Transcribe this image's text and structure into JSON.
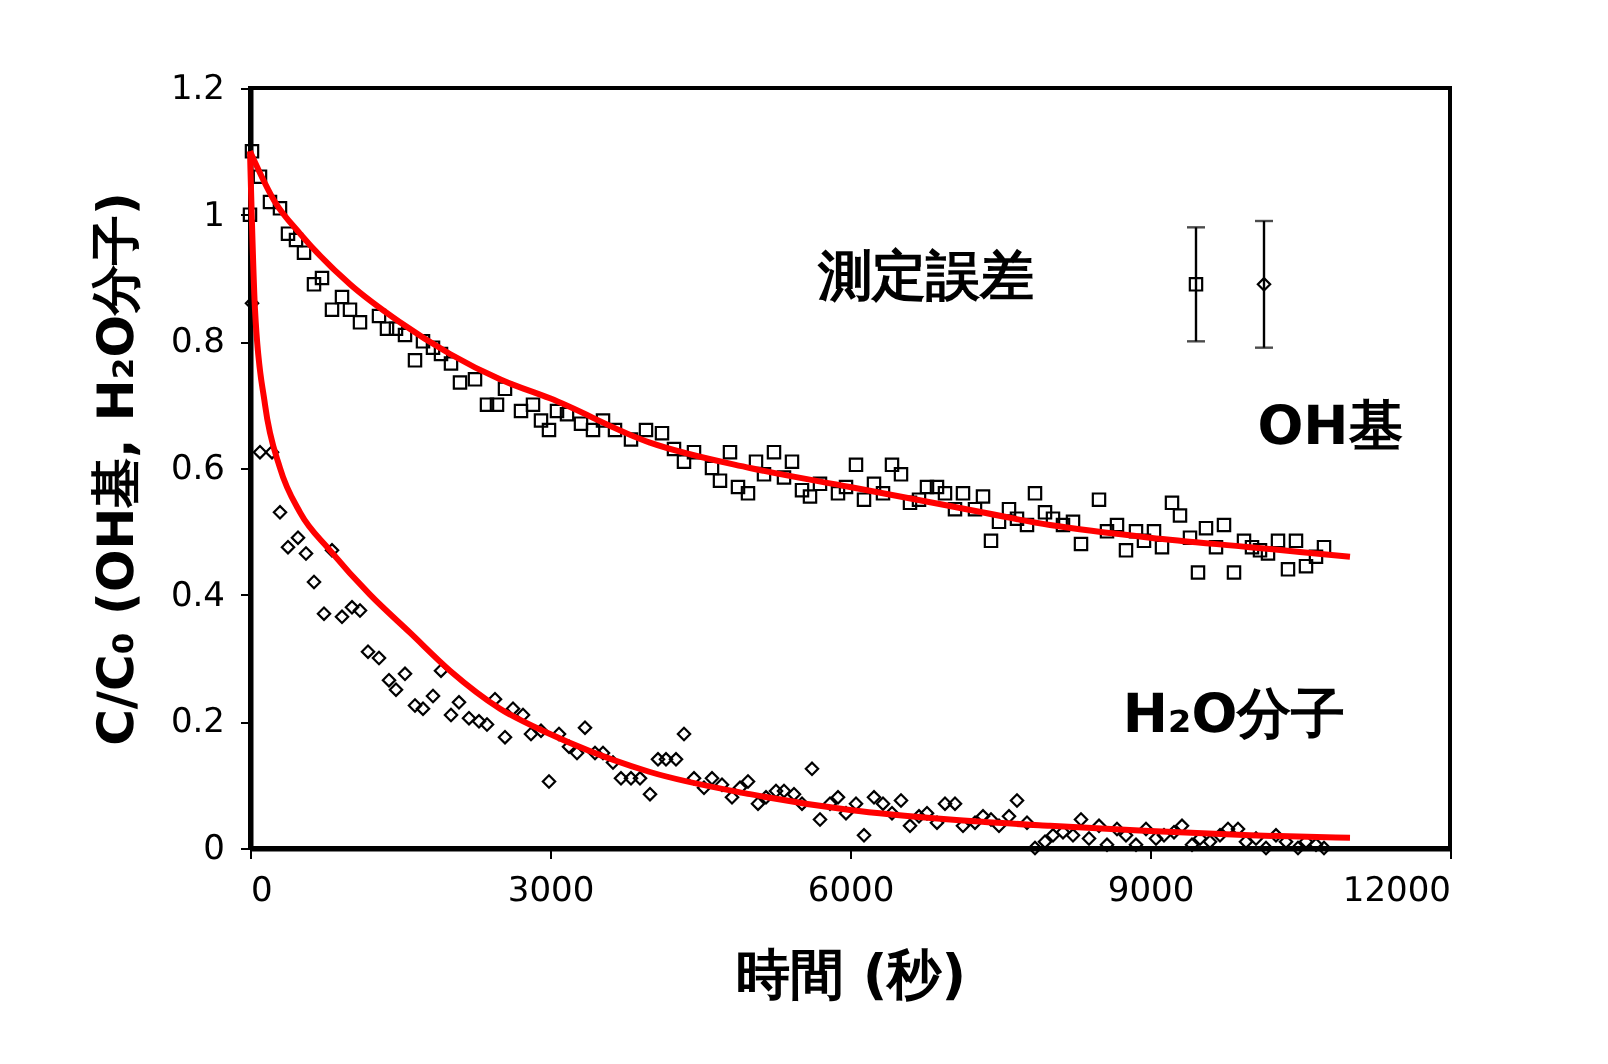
{
  "chart_data": {
    "type": "scatter",
    "xlabel": "時間 (秒)",
    "ylabel": "C/C₀ (OH基, H₂O分子)",
    "xlim": [
      0,
      12000
    ],
    "ylim": [
      0,
      1.2
    ],
    "xticks": [
      0,
      3000,
      6000,
      9000,
      12000
    ],
    "yticks": [
      0,
      0.2,
      0.4,
      0.6,
      0.8,
      1,
      1.2
    ],
    "annotations": [
      "測定誤差"
    ],
    "series": [
      {
        "name": "OH基",
        "type": "scatter",
        "marker": "square",
        "color": "#000000",
        "x": [
          0,
          20,
          100,
          200,
          300,
          380,
          460,
          540,
          640,
          720,
          820,
          920,
          1000,
          1100,
          1290,
          1370,
          1460,
          1550,
          1650,
          1730,
          1830,
          1910,
          2010,
          2100,
          2250,
          2370,
          2470,
          2550,
          2710,
          2830,
          2910,
          2990,
          3070,
          3170,
          3310,
          3430,
          3530,
          3650,
          3810,
          3960,
          4120,
          4240,
          4340,
          4440,
          4620,
          4700,
          4800,
          4880,
          4980,
          5060,
          5140,
          5240,
          5340,
          5420,
          5520,
          5600,
          5700,
          5880,
          5960,
          6060,
          6140,
          6240,
          6330,
          6420,
          6510,
          6600,
          6690,
          6770,
          6870,
          6950,
          7050,
          7130,
          7250,
          7330,
          7410,
          7490,
          7590,
          7670,
          7770,
          7850,
          7950,
          8030,
          8130,
          8230,
          8310,
          8490,
          8570,
          8670,
          8760,
          8860,
          8940,
          9040,
          9120,
          9220,
          9300,
          9400,
          9480,
          9560,
          9660,
          9740,
          9840,
          9940,
          10020,
          10100,
          10180,
          10280,
          10380,
          10460,
          10560,
          10660,
          10740
        ],
        "values": [
          1.0,
          1.1,
          1.06,
          1.02,
          1.01,
          0.97,
          0.96,
          0.94,
          0.89,
          0.9,
          0.85,
          0.87,
          0.85,
          0.83,
          0.84,
          0.82,
          0.82,
          0.81,
          0.77,
          0.8,
          0.79,
          0.78,
          0.765,
          0.735,
          0.74,
          0.7,
          0.7,
          0.725,
          0.69,
          0.7,
          0.675,
          0.66,
          0.69,
          0.685,
          0.67,
          0.66,
          0.675,
          0.66,
          0.645,
          0.66,
          0.655,
          0.63,
          0.61,
          0.625,
          0.6,
          0.58,
          0.625,
          0.57,
          0.56,
          0.61,
          0.59,
          0.625,
          0.585,
          0.61,
          0.565,
          0.555,
          0.575,
          0.56,
          0.57,
          0.605,
          0.55,
          0.575,
          0.56,
          0.605,
          0.59,
          0.545,
          0.55,
          0.57,
          0.57,
          0.56,
          0.535,
          0.56,
          0.535,
          0.555,
          0.485,
          0.515,
          0.535,
          0.52,
          0.51,
          0.56,
          0.53,
          0.52,
          0.51,
          0.515,
          0.48,
          0.55,
          0.5,
          0.51,
          0.47,
          0.5,
          0.485,
          0.5,
          0.475,
          0.545,
          0.525,
          0.49,
          0.435,
          0.505,
          0.475,
          0.51,
          0.435,
          0.485,
          0.475,
          0.47,
          0.465,
          0.485,
          0.44,
          0.485,
          0.445,
          0.46,
          0.475
        ]
      },
      {
        "name": "H₂O分子",
        "type": "scatter",
        "marker": "diamond",
        "color": "#000000",
        "x": [
          20,
          100,
          220,
          300,
          380,
          480,
          560,
          640,
          740,
          820,
          920,
          1020,
          1100,
          1180,
          1290,
          1390,
          1460,
          1550,
          1650,
          1730,
          1830,
          1910,
          2010,
          2090,
          2190,
          2290,
          2370,
          2450,
          2550,
          2630,
          2730,
          2810,
          2910,
          2990,
          3090,
          3190,
          3270,
          3350,
          3450,
          3530,
          3630,
          3710,
          3810,
          3900,
          4000,
          4080,
          4160,
          4260,
          4340,
          4440,
          4540,
          4620,
          4720,
          4820,
          4900,
          4980,
          5080,
          5160,
          5260,
          5340,
          5440,
          5520,
          5620,
          5700,
          5800,
          5880,
          5960,
          6060,
          6140,
          6240,
          6330,
          6420,
          6510,
          6600,
          6690,
          6770,
          6870,
          6950,
          7050,
          7130,
          7250,
          7330,
          7410,
          7490,
          7590,
          7670,
          7770,
          7850,
          7950,
          8030,
          8130,
          8230,
          8310,
          8390,
          8490,
          8570,
          8670,
          8760,
          8860,
          8960,
          9060,
          9140,
          9240,
          9320,
          9420,
          9500,
          9600,
          9700,
          9780,
          9880,
          9960,
          10060,
          10160,
          10260,
          10360,
          10480,
          10560,
          10660,
          10740
        ],
        "values": [
          0.86,
          0.625,
          0.625,
          0.53,
          0.475,
          0.49,
          0.465,
          0.42,
          0.37,
          0.47,
          0.365,
          0.38,
          0.375,
          0.31,
          0.3,
          0.265,
          0.25,
          0.275,
          0.225,
          0.22,
          0.24,
          0.28,
          0.21,
          0.23,
          0.205,
          0.2,
          0.195,
          0.235,
          0.175,
          0.22,
          0.21,
          0.18,
          0.185,
          0.105,
          0.18,
          0.16,
          0.15,
          0.19,
          0.15,
          0.15,
          0.135,
          0.11,
          0.11,
          0.11,
          0.085,
          0.14,
          0.14,
          0.14,
          0.18,
          0.11,
          0.095,
          0.11,
          0.1,
          0.08,
          0.095,
          0.105,
          0.07,
          0.08,
          0.09,
          0.09,
          0.085,
          0.07,
          0.125,
          0.045,
          0.07,
          0.08,
          0.055,
          0.07,
          0.02,
          0.08,
          0.07,
          0.055,
          0.075,
          0.035,
          0.05,
          0.055,
          0.04,
          0.07,
          0.07,
          0.035,
          0.04,
          0.05,
          0.045,
          0.035,
          0.05,
          0.075,
          0.04,
          0.0,
          0.01,
          0.02,
          0.025,
          0.02,
          0.045,
          0.015,
          0.035,
          0.005,
          0.03,
          0.02,
          0.005,
          0.03,
          0.015,
          0.02,
          0.025,
          0.035,
          0.005,
          0.015,
          0.01,
          0.02,
          0.03,
          0.03,
          0.01,
          0.015,
          0.0,
          0.02,
          0.01,
          0.0,
          0.01,
          0.005,
          0.0
        ]
      },
      {
        "type": "line",
        "color": "#ff0000",
        "x": [
          0,
          250,
          500,
          1000,
          1500,
          2000,
          2500,
          3000,
          4000,
          5000,
          6000,
          7000,
          8000,
          9000,
          10000,
          11000
        ],
        "values": [
          1.1,
          1.02,
          0.97,
          0.89,
          0.83,
          0.78,
          0.74,
          0.71,
          0.64,
          0.6,
          0.57,
          0.54,
          0.51,
          0.49,
          0.475,
          0.46
        ]
      },
      {
        "type": "line",
        "color": "#ff0000",
        "x": [
          0,
          50,
          150,
          300,
          500,
          800,
          1200,
          1600,
          2000,
          2500,
          3000,
          4000,
          5000,
          6000,
          7000,
          8000,
          9000,
          10000,
          11000
        ],
        "values": [
          1.1,
          0.85,
          0.7,
          0.6,
          0.53,
          0.47,
          0.4,
          0.34,
          0.28,
          0.22,
          0.18,
          0.12,
          0.085,
          0.06,
          0.045,
          0.035,
          0.027,
          0.02,
          0.016
        ]
      },
      {
        "type": "scatter",
        "marker": "square",
        "color": "#000000",
        "x": [
          9460
        ],
        "values": [
          0.89
        ],
        "errors": [
          0.09
        ]
      },
      {
        "type": "scatter",
        "marker": "diamond",
        "color": "#000000",
        "x": [
          10140
        ],
        "values": [
          0.89
        ],
        "errors": [
          0.1
        ]
      }
    ]
  }
}
